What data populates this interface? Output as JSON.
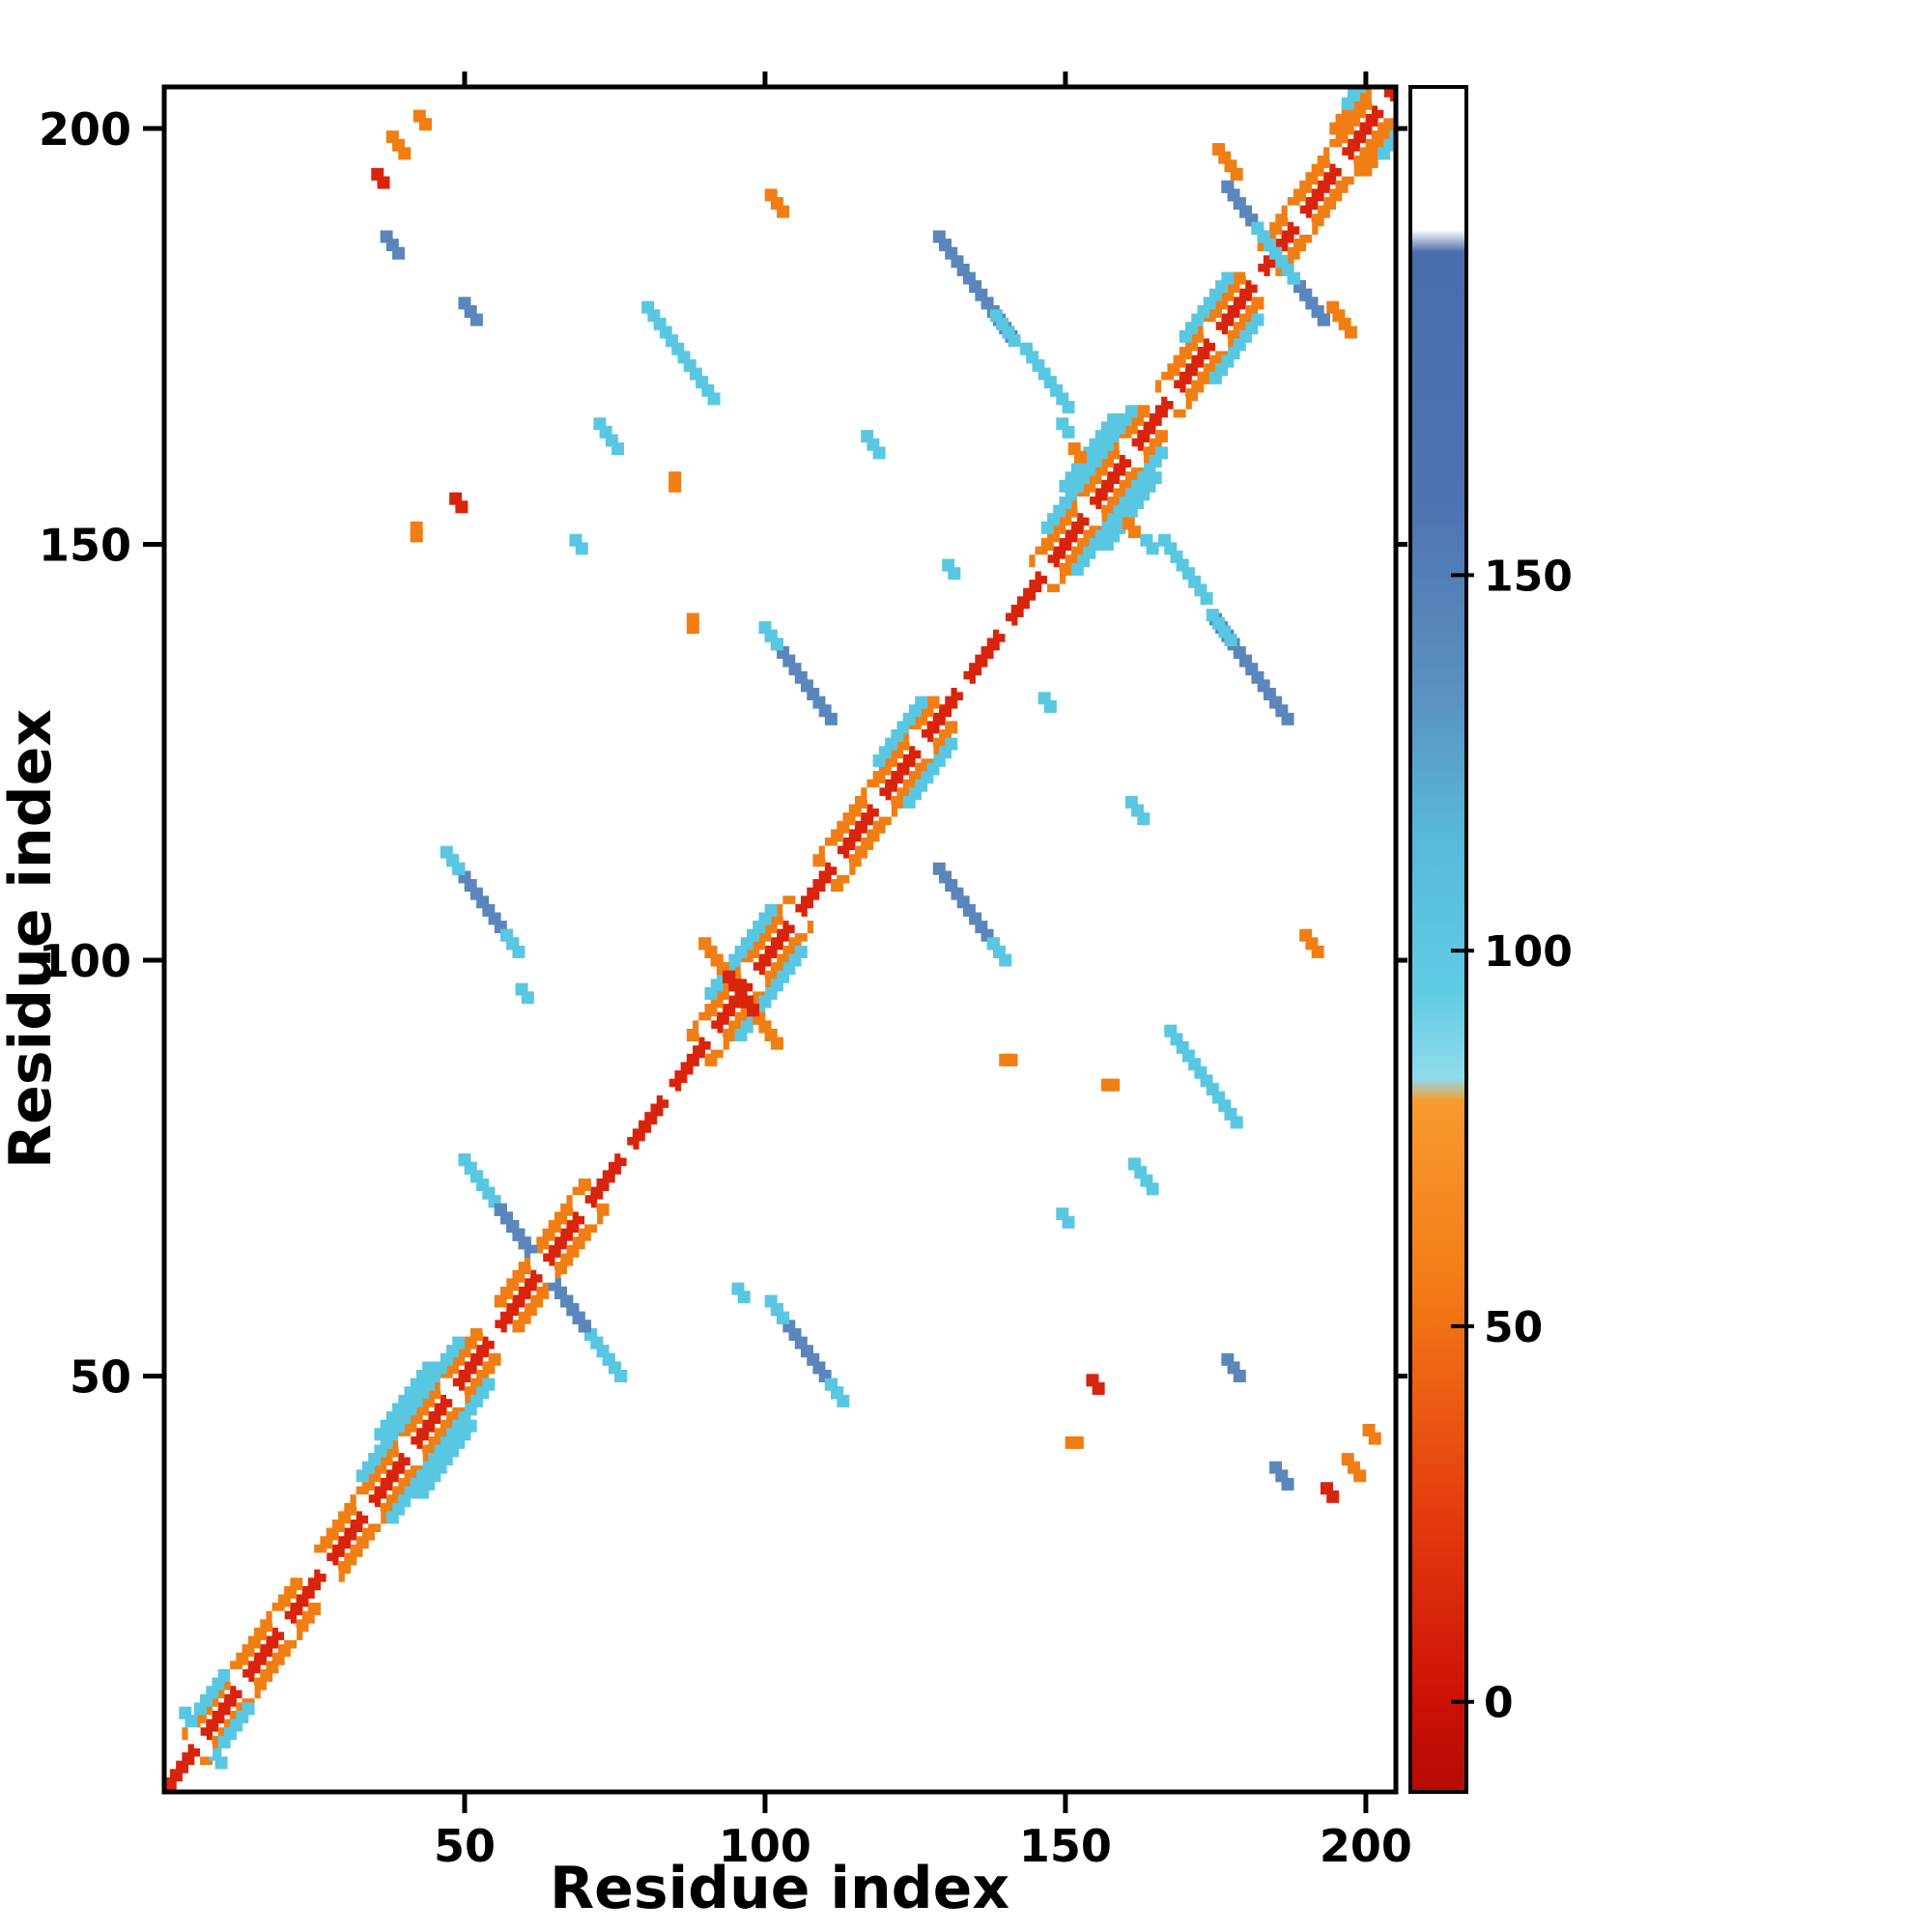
{
  "figure": {
    "background": "#ffffff"
  },
  "chart_data": {
    "type": "heatmap",
    "subtype": "protein-contact-map",
    "title": "",
    "xlabel": "Residue index",
    "ylabel": "Residue index",
    "x_range": [
      0,
      205
    ],
    "y_range": [
      0,
      205
    ],
    "x_ticks": [
      50,
      100,
      150,
      200
    ],
    "y_ticks": [
      50,
      100,
      150,
      200
    ],
    "grid": false,
    "symmetric": true,
    "legend": "colorbar-right",
    "palette": {
      "red": "#d8240c",
      "orange": "#f07e14",
      "cyan": "#59c7e2",
      "steel": "#5b86bc",
      "white": "#ffffff"
    },
    "colorbar": {
      "ticks": [
        0,
        50,
        100,
        150
      ],
      "range": [
        -12,
        215
      ],
      "stops": [
        {
          "v": -12,
          "c": "#b50b04"
        },
        {
          "v": 0,
          "c": "#cc1106"
        },
        {
          "v": 25,
          "c": "#e53b0e"
        },
        {
          "v": 55,
          "c": "#f37b16"
        },
        {
          "v": 80,
          "c": "#f89a2e"
        },
        {
          "v": 83,
          "c": "#8fdcec"
        },
        {
          "v": 95,
          "c": "#5fcbe4"
        },
        {
          "v": 115,
          "c": "#57b9d9"
        },
        {
          "v": 135,
          "c": "#5a90c2"
        },
        {
          "v": 160,
          "c": "#4e73b0"
        },
        {
          "v": 193,
          "c": "#4a6dac"
        },
        {
          "v": 196,
          "c": "#ffffff"
        },
        {
          "v": 215,
          "c": "#ffffff"
        }
      ]
    },
    "diagonal": {
      "from": 1,
      "to": 204,
      "color": "red"
    },
    "diag_gaps": [
      6,
      13,
      20,
      27,
      34,
      41,
      48,
      55,
      63,
      70,
      77,
      84,
      91,
      98,
      105,
      112,
      119,
      126,
      133,
      140,
      147,
      154,
      161,
      168,
      175,
      182,
      189,
      196,
      203
    ],
    "flank_runs": [
      {
        "from": 4,
        "to": 22,
        "offset": 3,
        "color": "orange"
      },
      {
        "from": 6,
        "to": 10,
        "offset": 4,
        "color": "cyan"
      },
      {
        "from": 26,
        "to": 52,
        "offset": 3,
        "color": "orange"
      },
      {
        "from": 33,
        "to": 49,
        "offset": 5,
        "color": "cyan"
      },
      {
        "from": 36,
        "to": 44,
        "offset": 7,
        "color": "cyan"
      },
      {
        "from": 56,
        "to": 70,
        "offset": 3,
        "color": "orange"
      },
      {
        "from": 88,
        "to": 104,
        "offset": 3,
        "color": "orange"
      },
      {
        "from": 91,
        "to": 101,
        "offset": 5,
        "color": "cyan"
      },
      {
        "from": 109,
        "to": 116,
        "offset": 3,
        "color": "orange"
      },
      {
        "from": 117,
        "to": 128,
        "offset": 3,
        "color": "orange"
      },
      {
        "from": 119,
        "to": 126,
        "offset": 5,
        "color": "cyan"
      },
      {
        "from": 145,
        "to": 163,
        "offset": 3,
        "color": "orange"
      },
      {
        "from": 147,
        "to": 161,
        "offset": 5,
        "color": "cyan"
      },
      {
        "from": 150,
        "to": 158,
        "offset": 7,
        "color": "cyan"
      },
      {
        "from": 166,
        "to": 179,
        "offset": 3,
        "color": "orange"
      },
      {
        "from": 170,
        "to": 177,
        "offset": 5,
        "color": "cyan"
      },
      {
        "from": 183,
        "to": 192,
        "offset": 3,
        "color": "orange"
      },
      {
        "from": 193,
        "to": 204,
        "offset": 3,
        "color": "orange"
      },
      {
        "from": 195,
        "to": 203,
        "offset": 5,
        "color": "orange"
      },
      {
        "from": 197,
        "to": 201,
        "offset": 6,
        "color": "cyan"
      }
    ],
    "segments": [
      {
        "x": 63,
        "y": 63,
        "len": 27,
        "color": "cyan"
      },
      {
        "x": 63,
        "y": 63,
        "len": 15,
        "color": "steel"
      },
      {
        "x": 96,
        "y": 96,
        "len": 13,
        "color": "orange"
      },
      {
        "x": 96,
        "y": 96,
        "len": 5,
        "color": "red"
      },
      {
        "x": 185,
        "y": 185,
        "len": 17,
        "color": "steel"
      },
      {
        "x": 185,
        "y": 185,
        "len": 7,
        "color": "cyan"
      },
      {
        "x": 86,
        "y": 173,
        "len": 12,
        "color": "cyan"
      },
      {
        "x": 135,
        "y": 181,
        "len": 13,
        "color": "steel"
      },
      {
        "x": 140,
        "y": 176,
        "len": 4,
        "color": "cyan"
      },
      {
        "x": 106,
        "y": 134,
        "len": 11,
        "color": "steel"
      },
      {
        "x": 101,
        "y": 139,
        "len": 3,
        "color": "cyan"
      },
      {
        "x": 53,
        "y": 107,
        "len": 11,
        "color": "steel"
      },
      {
        "x": 48,
        "y": 112,
        "len": 3,
        "color": "cyan"
      },
      {
        "x": 58,
        "y": 102,
        "len": 3,
        "color": "cyan"
      },
      {
        "x": 147,
        "y": 170,
        "len": 8,
        "color": "cyan"
      },
      {
        "x": 74,
        "y": 163,
        "len": 4,
        "color": "cyan"
      },
      {
        "x": 118,
        "y": 162,
        "len": 3,
        "color": "cyan"
      },
      {
        "x": 39,
        "y": 198,
        "len": 3,
        "color": "orange"
      },
      {
        "x": 36,
        "y": 194,
        "len": 2,
        "color": "red"
      },
      {
        "x": 43,
        "y": 201,
        "len": 2,
        "color": "orange"
      },
      {
        "x": 38,
        "y": 186,
        "len": 3,
        "color": "steel"
      },
      {
        "x": 51,
        "y": 178,
        "len": 3,
        "color": "steel"
      },
      {
        "x": 102,
        "y": 191,
        "len": 3,
        "color": "orange"
      },
      {
        "x": 177,
        "y": 196,
        "len": 4,
        "color": "orange"
      },
      {
        "x": 85,
        "y": 157,
        "len": 2,
        "color": "orange",
        "dir": "v"
      },
      {
        "x": 69,
        "y": 150,
        "len": 2,
        "color": "cyan"
      },
      {
        "x": 42,
        "y": 151,
        "len": 2,
        "color": "orange",
        "dir": "v"
      },
      {
        "x": 49,
        "y": 155,
        "len": 2,
        "color": "red"
      },
      {
        "x": 60,
        "y": 96,
        "len": 2,
        "color": "cyan"
      },
      {
        "x": 88,
        "y": 140,
        "len": 2,
        "color": "orange",
        "dir": "v"
      },
      {
        "x": 152,
        "y": 161,
        "len": 2,
        "color": "orange"
      },
      {
        "x": 4,
        "y": 9,
        "len": 2,
        "color": "cyan"
      },
      {
        "x": 131,
        "y": 147,
        "len": 2,
        "color": "cyan"
      },
      {
        "x": 164,
        "y": 150,
        "len": 2,
        "color": "cyan"
      }
    ]
  }
}
